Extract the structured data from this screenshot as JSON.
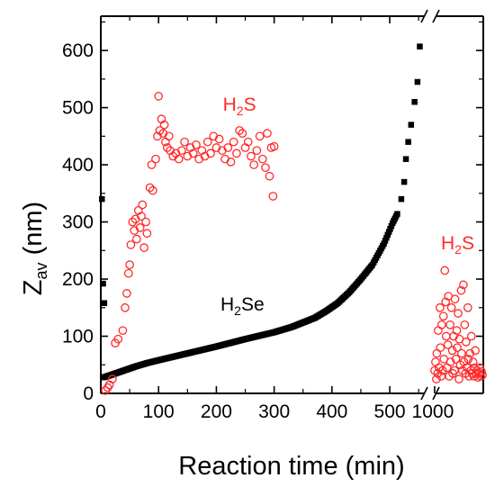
{
  "chart_data": {
    "type": "scatter",
    "title": "",
    "xlabel": "Reaction time (min)",
    "ylabel": "Z",
    "ylabel_sub": "av",
    "ylabel_unit": " (nm)",
    "ylim": [
      0,
      660
    ],
    "y_ticks": [
      0,
      100,
      200,
      300,
      400,
      500,
      600
    ],
    "xlim_main": [
      0,
      570
    ],
    "x_ticks_main": [
      0,
      100,
      200,
      300,
      400,
      500
    ],
    "xlim_inset": [
      990,
      1110
    ],
    "x_ticks_inset": [
      1000
    ],
    "axis_break": "//",
    "grid": false,
    "legend": "none",
    "colors": {
      "H2S": "#ff2a2a",
      "H2Se": "#000000",
      "axis": "#000000"
    },
    "annotations": [
      {
        "text": "H",
        "sub": "2",
        "rest": "S",
        "color": "#ff2a2a",
        "x": 240,
        "y": 495
      },
      {
        "text": "H",
        "sub": "2",
        "rest": "Se",
        "color": "#000000",
        "x": 245,
        "y": 145
      },
      {
        "text": "H",
        "sub": "2",
        "rest": "S",
        "color": "#ff2a2a",
        "x": 1052,
        "y": 252
      }
    ],
    "series": [
      {
        "name": "H2Se",
        "marker": "filled-square",
        "color": "#000000",
        "points": [
          [
            2,
            340
          ],
          [
            4,
            192
          ],
          [
            6,
            158
          ],
          [
            520,
            340
          ],
          [
            525,
            370
          ],
          [
            528,
            410
          ],
          [
            532,
            440
          ],
          [
            537,
            470
          ],
          [
            543,
            510
          ],
          [
            548,
            545
          ],
          [
            552,
            607
          ]
        ],
        "curve": [
          [
            5,
            28
          ],
          [
            20,
            33
          ],
          [
            40,
            40
          ],
          [
            60,
            47
          ],
          [
            80,
            53
          ],
          [
            100,
            58
          ],
          [
            150,
            70
          ],
          [
            200,
            82
          ],
          [
            250,
            95
          ],
          [
            300,
            107
          ],
          [
            330,
            116
          ],
          [
            350,
            124
          ],
          [
            370,
            132
          ],
          [
            390,
            144
          ],
          [
            410,
            158
          ],
          [
            430,
            177
          ],
          [
            450,
            200
          ],
          [
            470,
            225
          ],
          [
            490,
            262
          ],
          [
            505,
            298
          ],
          [
            515,
            318
          ]
        ]
      },
      {
        "name": "H2S",
        "marker": "open-circle",
        "color": "#ff2a2a",
        "points": [
          [
            8,
            5
          ],
          [
            12,
            10
          ],
          [
            15,
            15
          ],
          [
            20,
            25
          ],
          [
            25,
            88
          ],
          [
            30,
            95
          ],
          [
            38,
            110
          ],
          [
            42,
            150
          ],
          [
            45,
            175
          ],
          [
            48,
            210
          ],
          [
            50,
            225
          ],
          [
            52,
            260
          ],
          [
            55,
            300
          ],
          [
            58,
            285
          ],
          [
            60,
            305
          ],
          [
            62,
            270
          ],
          [
            65,
            320
          ],
          [
            68,
            290
          ],
          [
            70,
            310
          ],
          [
            72,
            330
          ],
          [
            75,
            255
          ],
          [
            78,
            300
          ],
          [
            80,
            280
          ],
          [
            85,
            360
          ],
          [
            88,
            400
          ],
          [
            90,
            355
          ],
          [
            95,
            410
          ],
          [
            98,
            450
          ],
          [
            100,
            520
          ],
          [
            102,
            460
          ],
          [
            105,
            480
          ],
          [
            108,
            455
          ],
          [
            110,
            470
          ],
          [
            112,
            440
          ],
          [
            115,
            430
          ],
          [
            118,
            450
          ],
          [
            120,
            425
          ],
          [
            125,
            415
          ],
          [
            130,
            420
          ],
          [
            135,
            410
          ],
          [
            140,
            425
          ],
          [
            145,
            440
          ],
          [
            150,
            415
          ],
          [
            155,
            430
          ],
          [
            160,
            420
          ],
          [
            165,
            435
          ],
          [
            170,
            410
          ],
          [
            175,
            425
          ],
          [
            180,
            415
          ],
          [
            185,
            440
          ],
          [
            190,
            420
          ],
          [
            195,
            450
          ],
          [
            200,
            430
          ],
          [
            205,
            445
          ],
          [
            210,
            425
          ],
          [
            215,
            410
          ],
          [
            220,
            430
          ],
          [
            225,
            405
          ],
          [
            230,
            440
          ],
          [
            235,
            420
          ],
          [
            240,
            460
          ],
          [
            245,
            455
          ],
          [
            250,
            430
          ],
          [
            255,
            440
          ],
          [
            260,
            415
          ],
          [
            265,
            400
          ],
          [
            270,
            425
          ],
          [
            275,
            450
          ],
          [
            280,
            410
          ],
          [
            285,
            395
          ],
          [
            288,
            455
          ],
          [
            292,
            380
          ],
          [
            295,
            430
          ],
          [
            298,
            345
          ],
          [
            300,
            432
          ]
        ],
        "inset_points": [
          [
            1000,
            40
          ],
          [
            1002,
            55
          ],
          [
            1004,
            25
          ],
          [
            1005,
            70
          ],
          [
            1007,
            35
          ],
          [
            1008,
            110
          ],
          [
            1010,
            45
          ],
          [
            1012,
            150
          ],
          [
            1013,
            80
          ],
          [
            1015,
            30
          ],
          [
            1016,
            120
          ],
          [
            1018,
            40
          ],
          [
            1020,
            135
          ],
          [
            1021,
            60
          ],
          [
            1023,
            215
          ],
          [
            1025,
            160
          ],
          [
            1026,
            100
          ],
          [
            1028,
            45
          ],
          [
            1030,
            85
          ],
          [
            1031,
            170
          ],
          [
            1033,
            30
          ],
          [
            1035,
            120
          ],
          [
            1036,
            55
          ],
          [
            1038,
            150
          ],
          [
            1040,
            75
          ],
          [
            1041,
            35
          ],
          [
            1043,
            100
          ],
          [
            1045,
            40
          ],
          [
            1046,
            165
          ],
          [
            1048,
            60
          ],
          [
            1050,
            110
          ],
          [
            1051,
            80
          ],
          [
            1053,
            140
          ],
          [
            1055,
            25
          ],
          [
            1056,
            95
          ],
          [
            1058,
            50
          ],
          [
            1060,
            180
          ],
          [
            1061,
            70
          ],
          [
            1063,
            40
          ],
          [
            1065,
            190
          ],
          [
            1066,
            55
          ],
          [
            1068,
            120
          ],
          [
            1070,
            35
          ],
          [
            1071,
            90
          ],
          [
            1073,
            45
          ],
          [
            1075,
            150
          ],
          [
            1076,
            60
          ],
          [
            1078,
            30
          ],
          [
            1080,
            70
          ],
          [
            1082,
            40
          ],
          [
            1083,
            100
          ],
          [
            1085,
            35
          ],
          [
            1087,
            55
          ],
          [
            1089,
            30
          ],
          [
            1090,
            45
          ],
          [
            1092,
            75
          ],
          [
            1094,
            35
          ],
          [
            1096,
            40
          ],
          [
            1098,
            28
          ],
          [
            1100,
            35
          ],
          [
            1102,
            45
          ],
          [
            1104,
            30
          ],
          [
            1106,
            38
          ],
          [
            1108,
            32
          ]
        ]
      }
    ]
  }
}
